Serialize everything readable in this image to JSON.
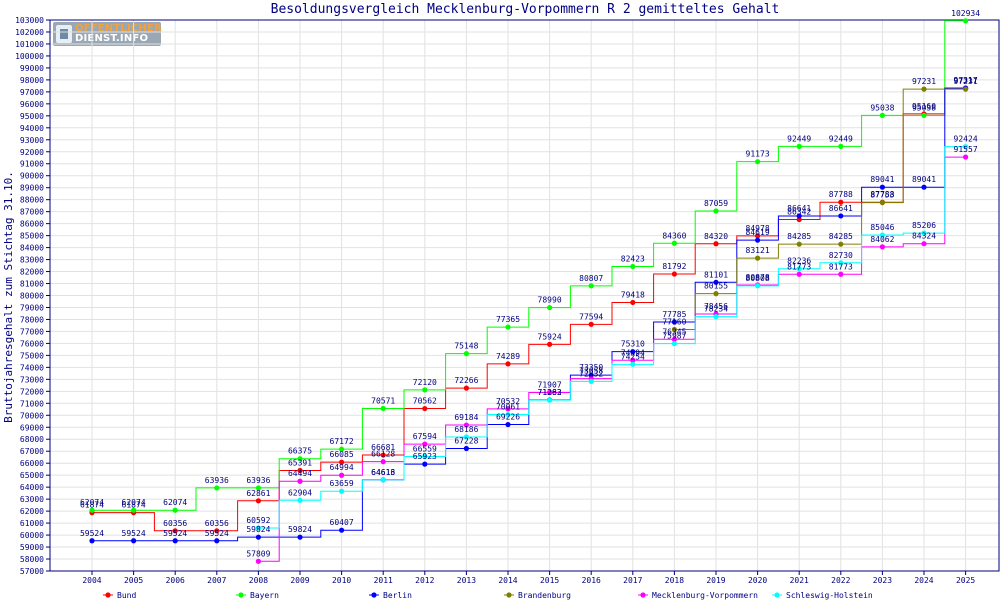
{
  "branding": {
    "logo_line1": "OFFENTLICHER",
    "logo_line2": "DIENST.INFO"
  },
  "colors": {
    "background": "#ffffff",
    "frame": "#000080",
    "grid": "#dcdcdc",
    "text": "#000080"
  },
  "chart_data": {
    "type": "line",
    "title": "Besoldungsvergleich Mecklenburg-Vorpommern R 2 gemitteltes Gehalt",
    "xlabel": "",
    "ylabel": "Bruttojahresgehalt zum Stichtag 31.10.",
    "ylim": [
      57000,
      103000
    ],
    "yticks": [
      57000,
      58000,
      59000,
      60000,
      61000,
      62000,
      63000,
      64000,
      65000,
      66000,
      67000,
      68000,
      69000,
      70000,
      71000,
      72000,
      73000,
      74000,
      75000,
      76000,
      77000,
      78000,
      79000,
      80000,
      81000,
      82000,
      83000,
      84000,
      85000,
      86000,
      87000,
      88000,
      89000,
      90000,
      91000,
      92000,
      93000,
      94000,
      95000,
      96000,
      97000,
      98000,
      99000,
      100000,
      101000,
      102000,
      103000
    ],
    "x": [
      2004,
      2005,
      2006,
      2007,
      2008,
      2009,
      2010,
      2011,
      2012,
      2013,
      2014,
      2015,
      2016,
      2017,
      2018,
      2019,
      2020,
      2021,
      2022,
      2023,
      2024,
      2025
    ],
    "grid": true,
    "legend_position": "bottom",
    "series": [
      {
        "name": "Bund",
        "color": "#ff0000",
        "values": [
          61874,
          61874,
          60356,
          60356,
          62861,
          65391,
          66085,
          66681,
          70562,
          72266,
          74289,
          75924,
          77594,
          79418,
          81792,
          84320,
          84978,
          86342,
          87788,
          87788,
          95160,
          97317
        ]
      },
      {
        "name": "Bayern",
        "color": "#00ff00",
        "values": [
          62074,
          62074,
          62074,
          63936,
          63936,
          66375,
          67172,
          70571,
          72120,
          75148,
          77365,
          78990,
          80807,
          82423,
          84360,
          87059,
          91173,
          92449,
          92449,
          95038,
          95038,
          102934
        ]
      },
      {
        "name": "Berlin",
        "color": "#0000ff",
        "values": [
          59524,
          59524,
          59524,
          59524,
          59824,
          59824,
          60407,
          64613,
          65923,
          67228,
          69226,
          71283,
          73350,
          75310,
          77785,
          81101,
          84619,
          86641,
          86641,
          89041,
          89041,
          97317
        ]
      },
      {
        "name": "Brandenburg",
        "color": "#808000",
        "values": [
          null,
          null,
          null,
          null,
          null,
          null,
          null,
          null,
          null,
          null,
          null,
          null,
          null,
          null,
          77160,
          80155,
          83121,
          84285,
          84285,
          87753,
          97231,
          97231
        ]
      },
      {
        "name": "Mecklenburg-Vorpommern",
        "color": "#ff00ff",
        "values": [
          null,
          null,
          null,
          null,
          57809,
          64494,
          64994,
          66128,
          67594,
          69184,
          70532,
          71907,
          73058,
          74594,
          76345,
          78456,
          80878,
          81773,
          81773,
          84062,
          84324,
          91557
        ]
      },
      {
        "name": "Schleswig-Holstein",
        "color": "#00ffff",
        "values": [
          null,
          null,
          null,
          null,
          60592,
          62904,
          63659,
          64616,
          66559,
          68186,
          70061,
          71262,
          72832,
          74254,
          75987,
          78234,
          80808,
          82236,
          82730,
          85046,
          85206,
          92424
        ]
      }
    ]
  }
}
